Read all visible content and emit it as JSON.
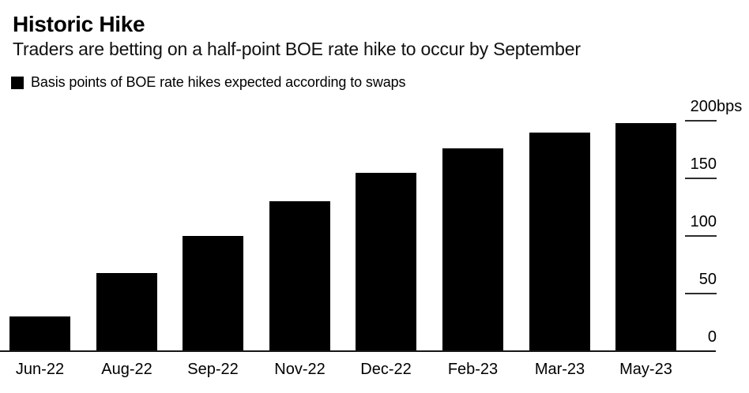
{
  "header": {
    "title": "Historic Hike",
    "subtitle": "Traders are betting on a half-point BOE rate hike to occur by September"
  },
  "legend": {
    "label": "Basis points of BOE rate hikes expected according to swaps",
    "swatch_color": "#000000"
  },
  "chart_data": {
    "type": "bar",
    "title": "Historic Hike",
    "subtitle": "Traders are betting on a half-point BOE rate hike to occur by September",
    "series_name": "Basis points of BOE rate hikes expected according to swaps",
    "categories": [
      "Jun-22",
      "Aug-22",
      "Sep-22",
      "Nov-22",
      "Dec-22",
      "Feb-23",
      "Mar-23",
      "May-23"
    ],
    "values": [
      30,
      68,
      100,
      130,
      155,
      176,
      190,
      198
    ],
    "xlabel": "",
    "ylabel": "bps",
    "ylim": [
      0,
      200
    ],
    "yticks": [
      0,
      50,
      100,
      150,
      200
    ],
    "ytick_unit_suffix": "bps",
    "ytick_side": "right",
    "grid": "short tick dashes on right side only",
    "legend_position": "top-left",
    "bar_color": "#000000"
  },
  "colors": {
    "background": "#ffffff",
    "bar": "#000000",
    "text": "#000000",
    "axis_line": "#161616",
    "tick_line": "#2e2e2e"
  }
}
